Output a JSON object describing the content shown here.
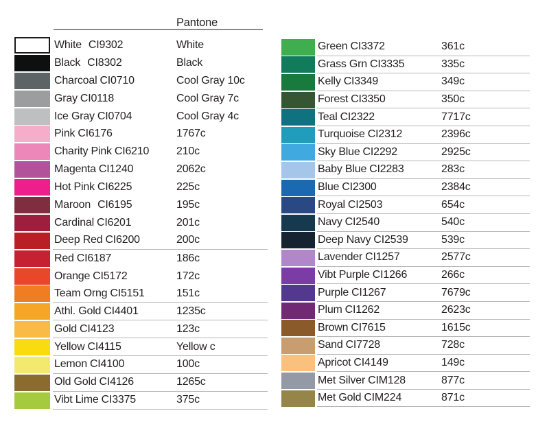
{
  "page": {
    "background": "#ffffff",
    "text_color": "#231f20",
    "row_underline_color": "#b4b6b8",
    "header_rule_color": "#87898c"
  },
  "chart_data": {
    "type": "table",
    "title": "Pantone",
    "columns": [
      "swatch_color",
      "name",
      "code",
      "pantone"
    ],
    "left_rows": [
      {
        "name": "White",
        "code": "CI9302",
        "pantone": "White",
        "color": "#ffffff",
        "border": true,
        "wide_gap": true,
        "underline": false
      },
      {
        "name": "Black",
        "code": "CI8302",
        "pantone": "Black",
        "color": "#0e0f0f",
        "wide_gap": true,
        "underline": false
      },
      {
        "name": "Charcoal",
        "code": "CI0710",
        "pantone": "Cool Gray 10c",
        "color": "#5d6466",
        "underline": false
      },
      {
        "name": "Gray",
        "code": "CI0118",
        "pantone": "Cool Gray 7c",
        "color": "#9b9d9f",
        "underline": false
      },
      {
        "name": "Ice Gray",
        "code": "CI0704",
        "pantone": "Cool Gray 4c",
        "color": "#bdbfc1",
        "underline": false
      },
      {
        "name": "Pink",
        "code": "CI6176",
        "pantone": "1767c",
        "color": "#f6adca",
        "underline": false
      },
      {
        "name": "Charity Pink",
        "code": "CI6210",
        "pantone": "210c",
        "color": "#ee87b9",
        "underline": false
      },
      {
        "name": "Magenta",
        "code": "CI1240",
        "pantone": "2062c",
        "color": "#b1529a",
        "underline": false
      },
      {
        "name": "Hot Pink",
        "code": "CI6225",
        "pantone": "225c",
        "color": "#ee1e8c",
        "underline": false
      },
      {
        "name": "Maroon",
        "code": "CI6195",
        "pantone": "195c",
        "color": "#7e2e3f",
        "wide_gap": true,
        "underline": false
      },
      {
        "name": "Cardinal",
        "code": "CI6201",
        "pantone": "201c",
        "color": "#9e1f3d",
        "underline": false
      },
      {
        "name": "Deep Red",
        "code": "CI6200",
        "pantone": "200c",
        "color": "#b92025",
        "underline": true
      },
      {
        "name": "Red",
        "code": "CI6187",
        "pantone": "186c",
        "color": "#c52131",
        "underline": false
      },
      {
        "name": "Orange",
        "code": "CI5172",
        "pantone": "172c",
        "color": "#e84729",
        "underline": false
      },
      {
        "name": "Team Orng",
        "code": "CI5151",
        "pantone": "151c",
        "color": "#f07d22",
        "underline": true
      },
      {
        "name": "Athl. Gold",
        "code": "CI4401",
        "pantone": "1235c",
        "color": "#f6a625",
        "underline": true
      },
      {
        "name": "Gold",
        "code": "CI4123",
        "pantone": "123c",
        "color": "#f9bb45",
        "underline": true
      },
      {
        "name": "Yellow",
        "code": "CI4115",
        "pantone": "Yellow c",
        "color": "#fadb0f",
        "underline": true
      },
      {
        "name": "Lemon",
        "code": "CI4100",
        "pantone": "100c",
        "color": "#f2e96e",
        "underline": true
      },
      {
        "name": "Old Gold",
        "code": "CI4126",
        "pantone": "1265c",
        "color": "#8b6b2e",
        "underline": true
      },
      {
        "name": "Vibt Lime",
        "code": "CI3375",
        "pantone": "375c",
        "color": "#a6ca3d",
        "underline": true
      }
    ],
    "right_rows": [
      {
        "name": "Green",
        "code": "CI3372",
        "pantone": "361c",
        "color": "#3fae4e",
        "underline": true
      },
      {
        "name": "Grass Grn",
        "code": "CI3335",
        "pantone": "335c",
        "color": "#107c5b",
        "underline": true
      },
      {
        "name": "Kelly",
        "code": "CI3349",
        "pantone": "349c",
        "color": "#187a3c",
        "underline": true
      },
      {
        "name": "Forest",
        "code": "CI3350",
        "pantone": "350c",
        "color": "#365633",
        "underline": true
      },
      {
        "name": "Teal",
        "code": "CI2322",
        "pantone": "7717c",
        "color": "#0f727e",
        "underline": true
      },
      {
        "name": "Turquoise",
        "code": "CI2312",
        "pantone": "2396c",
        "color": "#1f9dba",
        "underline": true
      },
      {
        "name": "Sky Blue",
        "code": "CI2292",
        "pantone": "2925c",
        "color": "#3fa9e0",
        "underline": true
      },
      {
        "name": "Baby Blue",
        "code": "CI2283",
        "pantone": "283c",
        "color": "#a5c6e9",
        "underline": true
      },
      {
        "name": "Blue",
        "code": "CI2300",
        "pantone": "2384c",
        "color": "#1b69b1",
        "underline": true
      },
      {
        "name": "Royal",
        "code": "CI2503",
        "pantone": "654c",
        "color": "#2a4884",
        "underline": true
      },
      {
        "name": "Navy",
        "code": "CI2540",
        "pantone": "540c",
        "color": "#15394f",
        "underline": true
      },
      {
        "name": "Deep Navy",
        "code": "CI2539",
        "pantone": "539c",
        "color": "#162330",
        "underline": true
      },
      {
        "name": "Lavender",
        "code": "CI1257",
        "pantone": "2577c",
        "color": "#b287c9",
        "underline": true
      },
      {
        "name": "Vibt Purple",
        "code": "CI1266",
        "pantone": "266c",
        "color": "#7b3ca6",
        "underline": true
      },
      {
        "name": "Purple",
        "code": "CI1267",
        "pantone": "7679c",
        "color": "#52398f",
        "underline": true
      },
      {
        "name": "Plum",
        "code": "CI1262",
        "pantone": "2623c",
        "color": "#6f2a73",
        "underline": true
      },
      {
        "name": "Brown",
        "code": "CI7615",
        "pantone": "1615c",
        "color": "#8a5a2a",
        "underline": true
      },
      {
        "name": "Sand",
        "code": "CI7728",
        "pantone": "728c",
        "color": "#c89d6f",
        "underline": true
      },
      {
        "name": "Apricot",
        "code": "CI4149",
        "pantone": "149c",
        "color": "#f9c17d",
        "underline": true
      },
      {
        "name": "Met Silver",
        "code": "CIM128",
        "pantone": "877c",
        "color": "#939aa5",
        "underline": true
      },
      {
        "name": "Met Gold",
        "code": "CIM224",
        "pantone": "871c",
        "color": "#968549",
        "underline": true
      }
    ]
  }
}
